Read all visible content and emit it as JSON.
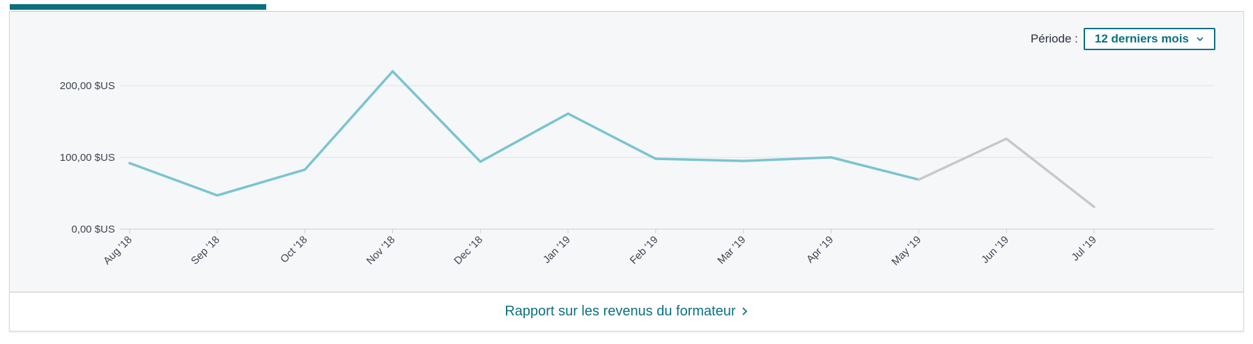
{
  "period": {
    "label": "Période :",
    "selected": "12 derniers mois"
  },
  "footer": {
    "report_link": "Rapport sur les revenus du formateur"
  },
  "icons": {
    "period_dropdown": "chevron-down-icon",
    "report_link": "chevron-right-icon"
  },
  "colors": {
    "accent": "#0a7080",
    "series_actual": "#7ac4d0",
    "series_pending": "#c8c8c8",
    "panel_background": "#f6f7f9"
  },
  "chart_data": {
    "type": "line",
    "title": "",
    "xlabel": "",
    "ylabel": "",
    "categories": [
      "Aug '18",
      "Sep '18",
      "Oct '18",
      "Nov '18",
      "Dec '18",
      "Jan '19",
      "Feb '19",
      "Mar '19",
      "Apr '19",
      "May '19",
      "Jun '19",
      "Jul '19"
    ],
    "y_ticks": [
      "0,00 $US",
      "100,00 $US",
      "200,00 $US"
    ],
    "y_tick_values": [
      0,
      100,
      200
    ],
    "ylim": [
      0,
      200
    ],
    "grid": true,
    "series": [
      {
        "values": [
          92,
          47,
          83,
          220,
          94,
          161,
          98,
          95,
          100,
          69,
          null,
          null
        ],
        "color": "#7ac4d0"
      },
      {
        "values": [
          null,
          null,
          null,
          null,
          null,
          null,
          null,
          null,
          null,
          69,
          126,
          31
        ],
        "color": "#c8c8c8"
      }
    ]
  }
}
